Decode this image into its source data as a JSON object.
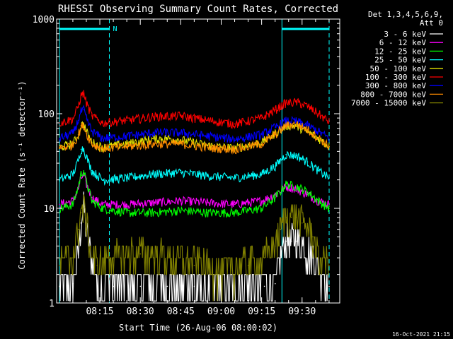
{
  "chart_data": {
    "type": "line",
    "title": "RHESSI Observing Summary Count Rates, Corrected",
    "xlabel": "Start Time (26-Aug-06 08:00:02)",
    "ylabel": "Corrected Count Rate (s⁻¹ detector⁻¹)",
    "yscale": "log",
    "ylim": [
      1,
      1000
    ],
    "xlim_minutes": [
      0,
      100
    ],
    "x_ticks": [
      "08:15",
      "08:30",
      "08:45",
      "09:00",
      "09:15",
      "09:30"
    ],
    "y_ticks": [
      "1",
      "10",
      "100",
      "1000"
    ],
    "legend_header": [
      "Det 1,3,4,5,6,9,",
      "Att 0"
    ],
    "legend_position": "top-right",
    "grid": false,
    "series": [
      {
        "name": "3 - 6 keV",
        "color": "#ffffff",
        "x": [
          0,
          5,
          7,
          8,
          9,
          10,
          12,
          14,
          20,
          30,
          40,
          50,
          60,
          70,
          76,
          80,
          82,
          84,
          86,
          88,
          90,
          94,
          96,
          100
        ],
        "values": [
          1.5,
          1.6,
          3,
          7,
          10,
          6,
          2.5,
          1.5,
          1.5,
          1.5,
          1.5,
          1.5,
          1.5,
          1.5,
          1.5,
          1.6,
          3,
          4.5,
          4.5,
          4.5,
          4,
          3,
          2,
          1.5
        ]
      },
      {
        "name": "6 - 12 keV",
        "color": "#ff00ff",
        "x": [
          0,
          5,
          7,
          8,
          9,
          10,
          12,
          16,
          25,
          35,
          45,
          55,
          65,
          75,
          80,
          84,
          88,
          92,
          96,
          100
        ],
        "values": [
          11,
          12,
          16,
          21,
          22,
          18,
          13,
          11,
          11,
          11.5,
          12,
          11.5,
          11,
          12,
          14,
          17,
          16,
          14,
          12,
          11
        ]
      },
      {
        "name": "12 - 25 keV",
        "color": "#00ff00",
        "x": [
          0,
          5,
          7,
          8,
          9,
          10,
          12,
          16,
          25,
          35,
          45,
          55,
          65,
          75,
          80,
          84,
          88,
          92,
          96,
          100
        ],
        "values": [
          10,
          11,
          17,
          23,
          25,
          19,
          12,
          10,
          9,
          9,
          9.5,
          9,
          9,
          10,
          13,
          18,
          17,
          15,
          12,
          10
        ]
      },
      {
        "name": "25 - 50 keV",
        "color": "#00ffff",
        "x": [
          0,
          5,
          7,
          8,
          9,
          10,
          12,
          16,
          25,
          35,
          45,
          55,
          65,
          75,
          80,
          84,
          88,
          92,
          96,
          100
        ],
        "values": [
          20,
          23,
          32,
          42,
          43,
          35,
          25,
          20,
          21,
          23,
          24,
          22,
          21,
          23,
          28,
          37,
          36,
          31,
          25,
          21
        ]
      },
      {
        "name": "50 - 100 keV",
        "color": "#e5e500",
        "x": [
          0,
          5,
          7,
          8,
          9,
          10,
          12,
          16,
          25,
          35,
          40,
          45,
          55,
          65,
          75,
          80,
          84,
          88,
          92,
          96,
          100
        ],
        "values": [
          44,
          48,
          60,
          75,
          78,
          65,
          50,
          44,
          48,
          54,
          55,
          53,
          46,
          43,
          50,
          62,
          75,
          74,
          64,
          55,
          45
        ]
      },
      {
        "name": "100 - 300 keV",
        "color": "#ff0000",
        "x": [
          0,
          5,
          7,
          8,
          9,
          10,
          12,
          16,
          25,
          35,
          45,
          55,
          65,
          75,
          80,
          84,
          88,
          92,
          96,
          100
        ],
        "values": [
          80,
          88,
          120,
          155,
          165,
          130,
          95,
          80,
          85,
          93,
          95,
          85,
          78,
          90,
          110,
          130,
          132,
          120,
          100,
          82
        ]
      },
      {
        "name": "300 - 800 keV",
        "color": "#0000ff",
        "x": [
          0,
          5,
          7,
          8,
          9,
          10,
          12,
          16,
          25,
          35,
          45,
          55,
          65,
          75,
          80,
          84,
          88,
          92,
          96,
          100
        ],
        "values": [
          55,
          62,
          85,
          105,
          110,
          88,
          65,
          55,
          58,
          63,
          63,
          58,
          54,
          60,
          72,
          84,
          83,
          75,
          65,
          55
        ]
      },
      {
        "name": "800 - 7000 keV",
        "color": "#ff8c00",
        "x": [
          0,
          5,
          7,
          8,
          9,
          10,
          12,
          16,
          25,
          35,
          45,
          55,
          65,
          75,
          80,
          84,
          88,
          92,
          96,
          100
        ],
        "values": [
          43,
          47,
          60,
          72,
          75,
          62,
          48,
          43,
          45,
          48,
          48,
          44,
          42,
          48,
          60,
          75,
          78,
          68,
          56,
          45
        ]
      },
      {
        "name": "7000 - 15000 keV",
        "color": "#808000",
        "x": [
          0,
          5,
          7,
          8,
          9,
          10,
          12,
          14,
          20,
          30,
          40,
          50,
          60,
          70,
          76,
          80,
          82,
          84,
          86,
          88,
          90,
          94,
          96,
          100
        ],
        "values": [
          2.5,
          3,
          6,
          9,
          10,
          7,
          3,
          2.5,
          3,
          3.3,
          3,
          2.5,
          2.2,
          2.5,
          3,
          4,
          6,
          8,
          8,
          8,
          7,
          5,
          3,
          2.5
        ]
      }
    ],
    "annotations": {
      "n_label": "N",
      "timestamp": "16-Oct-2021 21:15",
      "saa_bars_minutes": [
        [
          0,
          18.5
        ],
        [
          82.5,
          100
        ]
      ],
      "vertical_markers_minutes": [
        {
          "x": 0,
          "style": "solid"
        },
        {
          "x": 18.5,
          "style": "dashed"
        },
        {
          "x": 82.5,
          "style": "solid"
        },
        {
          "x": 100,
          "style": "dashed"
        }
      ]
    }
  }
}
